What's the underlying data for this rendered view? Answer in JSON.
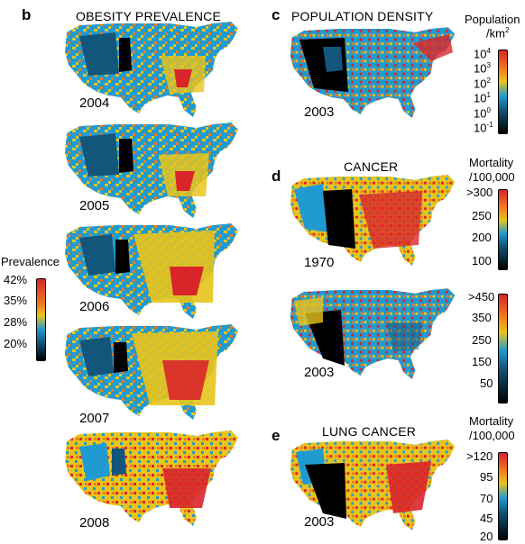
{
  "colors": {
    "red": "#d9252a",
    "orange": "#f07a1e",
    "yellow": "#e8c41c",
    "blue": "#1f9bd1",
    "dark_blue": "#13567c",
    "black": "#000000"
  },
  "panels": {
    "b": {
      "letter": "b",
      "title": "OBESITY PREVALENCE",
      "years": [
        "2004",
        "2005",
        "2006",
        "2007",
        "2008"
      ],
      "legend": {
        "label": "Prevalence",
        "ticks": [
          "42%",
          "35%",
          "28%",
          "20%"
        ]
      }
    },
    "c": {
      "letter": "c",
      "title": "POPULATION DENSITY",
      "year": "2003",
      "legend": {
        "label1": "Population",
        "label2": "/km",
        "label2_sup": "2",
        "ticks": [
          {
            "base": "10",
            "exp": "4"
          },
          {
            "base": "10",
            "exp": "3"
          },
          {
            "base": "10",
            "exp": "2"
          },
          {
            "base": "10",
            "exp": "1"
          },
          {
            "base": "10",
            "exp": "0"
          },
          {
            "base": "10",
            "exp": "-1"
          }
        ]
      }
    },
    "d": {
      "letter": "d",
      "title": "CANCER",
      "legend_label1": "Mortality",
      "legend_label2": "/100,000",
      "maps": [
        {
          "year": "1970",
          "ticks": [
            ">300",
            "250",
            "200",
            "100"
          ]
        },
        {
          "year": "2003",
          "ticks": [
            ">450",
            "350",
            "250",
            "150",
            "50"
          ]
        }
      ]
    },
    "e": {
      "letter": "e",
      "title": "LUNG CANCER",
      "year": "2003",
      "legend": {
        "label1": "Mortality",
        "label2": "/100,000",
        "ticks": [
          ">120",
          "95",
          "70",
          "45",
          "20"
        ]
      }
    }
  }
}
